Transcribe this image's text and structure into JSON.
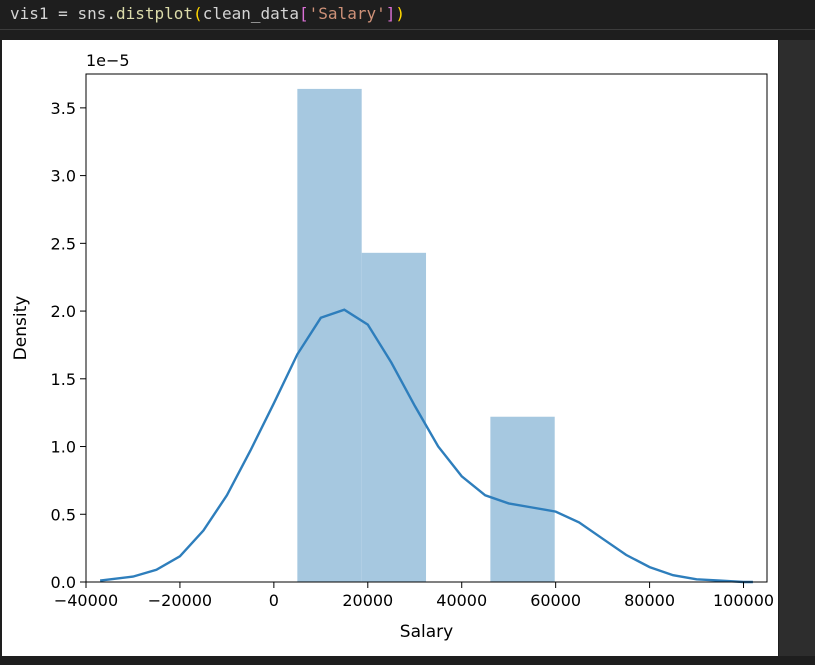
{
  "code": {
    "var": "vis1",
    "op": "=",
    "module": "sns.",
    "func": "distplot",
    "open_paren": "(",
    "arg_name": "clean_data",
    "open_bracket": "[",
    "arg_str": "'Salary'",
    "close_bracket": "]",
    "close_paren": ")"
  },
  "chart_data": {
    "type": "bar",
    "xlabel": "Salary",
    "ylabel": "Density",
    "offset_label": "1e−5",
    "xlim": [
      -40000,
      105000
    ],
    "ylim": [
      0,
      3.75
    ],
    "xticks": [
      -40000,
      -20000,
      0,
      20000,
      40000,
      60000,
      80000,
      100000
    ],
    "xtick_labels": [
      "−40000",
      "−20000",
      "0",
      "20000",
      "40000",
      "60000",
      "80000",
      "100000"
    ],
    "yticks": [
      0,
      0.5,
      1.0,
      1.5,
      2.0,
      2.5,
      3.0,
      3.5
    ],
    "ytick_labels": [
      "0.0",
      "0.5",
      "1.0",
      "1.5",
      "2.0",
      "2.5",
      "3.0",
      "3.5"
    ],
    "bar_color": "#a6c8e0",
    "kde_color": "#2e7ebc",
    "histogram": [
      {
        "x0": 5000,
        "x1": 18700,
        "density": 3.64
      },
      {
        "x0": 18700,
        "x1": 32400,
        "density": 2.43
      },
      {
        "x0": 32400,
        "x1": 46100,
        "density": 0.0
      },
      {
        "x0": 46100,
        "x1": 59800,
        "density": 1.22
      }
    ],
    "kde": {
      "x": [
        -37000,
        -30000,
        -25000,
        -20000,
        -15000,
        -10000,
        -5000,
        0,
        5000,
        10000,
        15000,
        20000,
        25000,
        30000,
        35000,
        40000,
        45000,
        50000,
        55000,
        60000,
        65000,
        70000,
        75000,
        80000,
        85000,
        90000,
        95000,
        100000,
        102000
      ],
      "y": [
        0.01,
        0.04,
        0.09,
        0.19,
        0.38,
        0.64,
        0.97,
        1.32,
        1.68,
        1.95,
        2.01,
        1.9,
        1.62,
        1.3,
        1.0,
        0.78,
        0.64,
        0.58,
        0.55,
        0.52,
        0.44,
        0.32,
        0.2,
        0.11,
        0.05,
        0.02,
        0.01,
        0.0,
        0.0
      ]
    }
  }
}
